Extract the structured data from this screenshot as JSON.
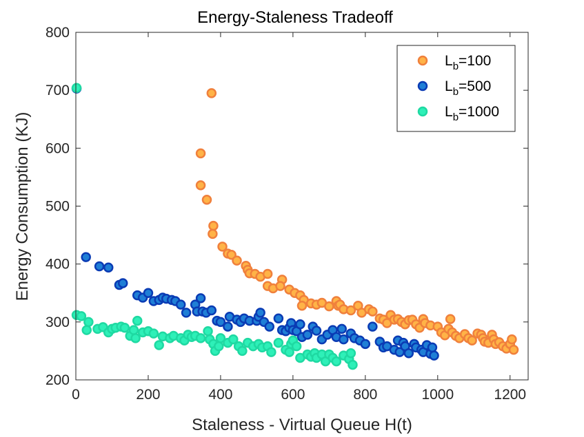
{
  "chart_data": {
    "type": "scatter",
    "title": "Energy-Staleness Tradeoff",
    "xlabel": "Staleness - Virtual Queue H(t)",
    "ylabel": "Energy Consumption (KJ)",
    "xlim": [
      0,
      1250
    ],
    "ylim": [
      200,
      800
    ],
    "xticks": [
      0,
      200,
      400,
      600,
      800,
      1000,
      1200
    ],
    "yticks": [
      200,
      300,
      400,
      500,
      600,
      700,
      800
    ],
    "legend_position": "top-right",
    "series": [
      {
        "name": "L_b=100",
        "label_main": "L",
        "label_sub": "b",
        "label_rest": "=100",
        "fill": "#ffb347",
        "edge": "#f0803c",
        "points": [
          [
            375,
            695
          ],
          [
            345,
            591
          ],
          [
            345,
            536
          ],
          [
            362,
            511
          ],
          [
            380,
            466
          ],
          [
            378,
            452
          ],
          [
            405,
            430
          ],
          [
            420,
            418
          ],
          [
            430,
            416
          ],
          [
            445,
            406
          ],
          [
            470,
            397
          ],
          [
            475,
            390
          ],
          [
            480,
            384
          ],
          [
            495,
            383
          ],
          [
            510,
            378
          ],
          [
            530,
            383
          ],
          [
            530,
            362
          ],
          [
            545,
            358
          ],
          [
            570,
            373
          ],
          [
            565,
            362
          ],
          [
            590,
            356
          ],
          [
            605,
            350
          ],
          [
            620,
            346
          ],
          [
            630,
            338
          ],
          [
            625,
            328
          ],
          [
            650,
            332
          ],
          [
            665,
            330
          ],
          [
            680,
            333
          ],
          [
            700,
            327
          ],
          [
            720,
            336
          ],
          [
            725,
            328
          ],
          [
            730,
            330
          ],
          [
            740,
            322
          ],
          [
            760,
            320
          ],
          [
            780,
            328
          ],
          [
            790,
            316
          ],
          [
            810,
            322
          ],
          [
            820,
            318
          ],
          [
            840,
            306
          ],
          [
            850,
            304
          ],
          [
            860,
            298
          ],
          [
            870,
            312
          ],
          [
            880,
            304
          ],
          [
            890,
            305
          ],
          [
            900,
            300
          ],
          [
            910,
            296
          ],
          [
            920,
            303
          ],
          [
            930,
            304
          ],
          [
            940,
            296
          ],
          [
            950,
            290
          ],
          [
            960,
            305
          ],
          [
            965,
            298
          ],
          [
            980,
            294
          ],
          [
            1000,
            292
          ],
          [
            1010,
            282
          ],
          [
            1020,
            277
          ],
          [
            1030,
            288
          ],
          [
            1035,
            305
          ],
          [
            1040,
            282
          ],
          [
            1050,
            276
          ],
          [
            1060,
            272
          ],
          [
            1075,
            279
          ],
          [
            1085,
            272
          ],
          [
            1095,
            268
          ],
          [
            1110,
            280
          ],
          [
            1120,
            278
          ],
          [
            1125,
            272
          ],
          [
            1130,
            266
          ],
          [
            1140,
            264
          ],
          [
            1150,
            278
          ],
          [
            1155,
            270
          ],
          [
            1160,
            262
          ],
          [
            1170,
            265
          ],
          [
            1180,
            258
          ],
          [
            1190,
            254
          ],
          [
            1200,
            262
          ],
          [
            1205,
            270
          ],
          [
            1210,
            252
          ]
        ]
      },
      {
        "name": "L_b=500",
        "label_main": "L",
        "label_sub": "b",
        "label_rest": "=500",
        "fill": "#1f7fd6",
        "edge": "#0a3bb4",
        "points": [
          [
            2,
            703
          ],
          [
            28,
            412
          ],
          [
            65,
            396
          ],
          [
            90,
            394
          ],
          [
            120,
            364
          ],
          [
            130,
            367
          ],
          [
            170,
            346
          ],
          [
            185,
            342
          ],
          [
            200,
            350
          ],
          [
            215,
            336
          ],
          [
            230,
            338
          ],
          [
            240,
            342
          ],
          [
            250,
            340
          ],
          [
            265,
            338
          ],
          [
            275,
            336
          ],
          [
            290,
            330
          ],
          [
            305,
            316
          ],
          [
            330,
            330
          ],
          [
            335,
            318
          ],
          [
            345,
            341
          ],
          [
            350,
            318
          ],
          [
            360,
            316
          ],
          [
            375,
            320
          ],
          [
            390,
            302
          ],
          [
            400,
            300
          ],
          [
            420,
            292
          ],
          [
            425,
            309
          ],
          [
            445,
            304
          ],
          [
            455,
            300
          ],
          [
            465,
            306
          ],
          [
            480,
            302
          ],
          [
            500,
            302
          ],
          [
            505,
            309
          ],
          [
            510,
            316
          ],
          [
            520,
            300
          ],
          [
            535,
            292
          ],
          [
            560,
            306
          ],
          [
            570,
            286
          ],
          [
            580,
            284
          ],
          [
            590,
            290
          ],
          [
            595,
            298
          ],
          [
            600,
            286
          ],
          [
            610,
            284
          ],
          [
            620,
            296
          ],
          [
            625,
            274
          ],
          [
            640,
            278
          ],
          [
            655,
            292
          ],
          [
            665,
            285
          ],
          [
            680,
            270
          ],
          [
            695,
            278
          ],
          [
            710,
            286
          ],
          [
            720,
            274
          ],
          [
            735,
            288
          ],
          [
            740,
            270
          ],
          [
            760,
            280
          ],
          [
            770,
            272
          ],
          [
            785,
            268
          ],
          [
            800,
            262
          ],
          [
            820,
            292
          ],
          [
            840,
            266
          ],
          [
            850,
            256
          ],
          [
            860,
            258
          ],
          [
            880,
            252
          ],
          [
            890,
            268
          ],
          [
            895,
            248
          ],
          [
            905,
            264
          ],
          [
            910,
            258
          ],
          [
            920,
            246
          ],
          [
            935,
            262
          ],
          [
            940,
            256
          ],
          [
            955,
            252
          ],
          [
            960,
            248
          ],
          [
            970,
            260
          ],
          [
            980,
            245
          ],
          [
            985,
            256
          ],
          [
            990,
            242
          ]
        ]
      },
      {
        "name": "L_b=1000",
        "label_main": "L",
        "label_sub": "b",
        "label_rest": "=1000",
        "fill": "#2ef0b8",
        "edge": "#1fd9a2",
        "points": [
          [
            2,
            704
          ],
          [
            2,
            312
          ],
          [
            15,
            310
          ],
          [
            30,
            286
          ],
          [
            35,
            300
          ],
          [
            60,
            288
          ],
          [
            75,
            291
          ],
          [
            90,
            282
          ],
          [
            100,
            288
          ],
          [
            110,
            290
          ],
          [
            125,
            292
          ],
          [
            135,
            290
          ],
          [
            150,
            276
          ],
          [
            160,
            286
          ],
          [
            165,
            272
          ],
          [
            170,
            302
          ],
          [
            185,
            282
          ],
          [
            200,
            284
          ],
          [
            215,
            280
          ],
          [
            230,
            260
          ],
          [
            240,
            275
          ],
          [
            260,
            272
          ],
          [
            270,
            276
          ],
          [
            290,
            272
          ],
          [
            300,
            268
          ],
          [
            310,
            278
          ],
          [
            320,
            274
          ],
          [
            330,
            276
          ],
          [
            345,
            272
          ],
          [
            365,
            284
          ],
          [
            370,
            270
          ],
          [
            380,
            262
          ],
          [
            385,
            250
          ],
          [
            395,
            258
          ],
          [
            400,
            272
          ],
          [
            420,
            264
          ],
          [
            435,
            270
          ],
          [
            450,
            258
          ],
          [
            460,
            250
          ],
          [
            475,
            264
          ],
          [
            490,
            258
          ],
          [
            505,
            262
          ],
          [
            515,
            256
          ],
          [
            530,
            258
          ],
          [
            540,
            248
          ],
          [
            560,
            264
          ],
          [
            580,
            252
          ],
          [
            590,
            248
          ],
          [
            595,
            262
          ],
          [
            600,
            268
          ],
          [
            610,
            258
          ],
          [
            620,
            238
          ],
          [
            640,
            244
          ],
          [
            650,
            240
          ],
          [
            660,
            246
          ],
          [
            665,
            238
          ],
          [
            680,
            244
          ],
          [
            690,
            232
          ],
          [
            700,
            244
          ],
          [
            710,
            238
          ],
          [
            720,
            232
          ],
          [
            740,
            242
          ],
          [
            755,
            236
          ],
          [
            760,
            246
          ],
          [
            765,
            226
          ]
        ]
      }
    ]
  }
}
